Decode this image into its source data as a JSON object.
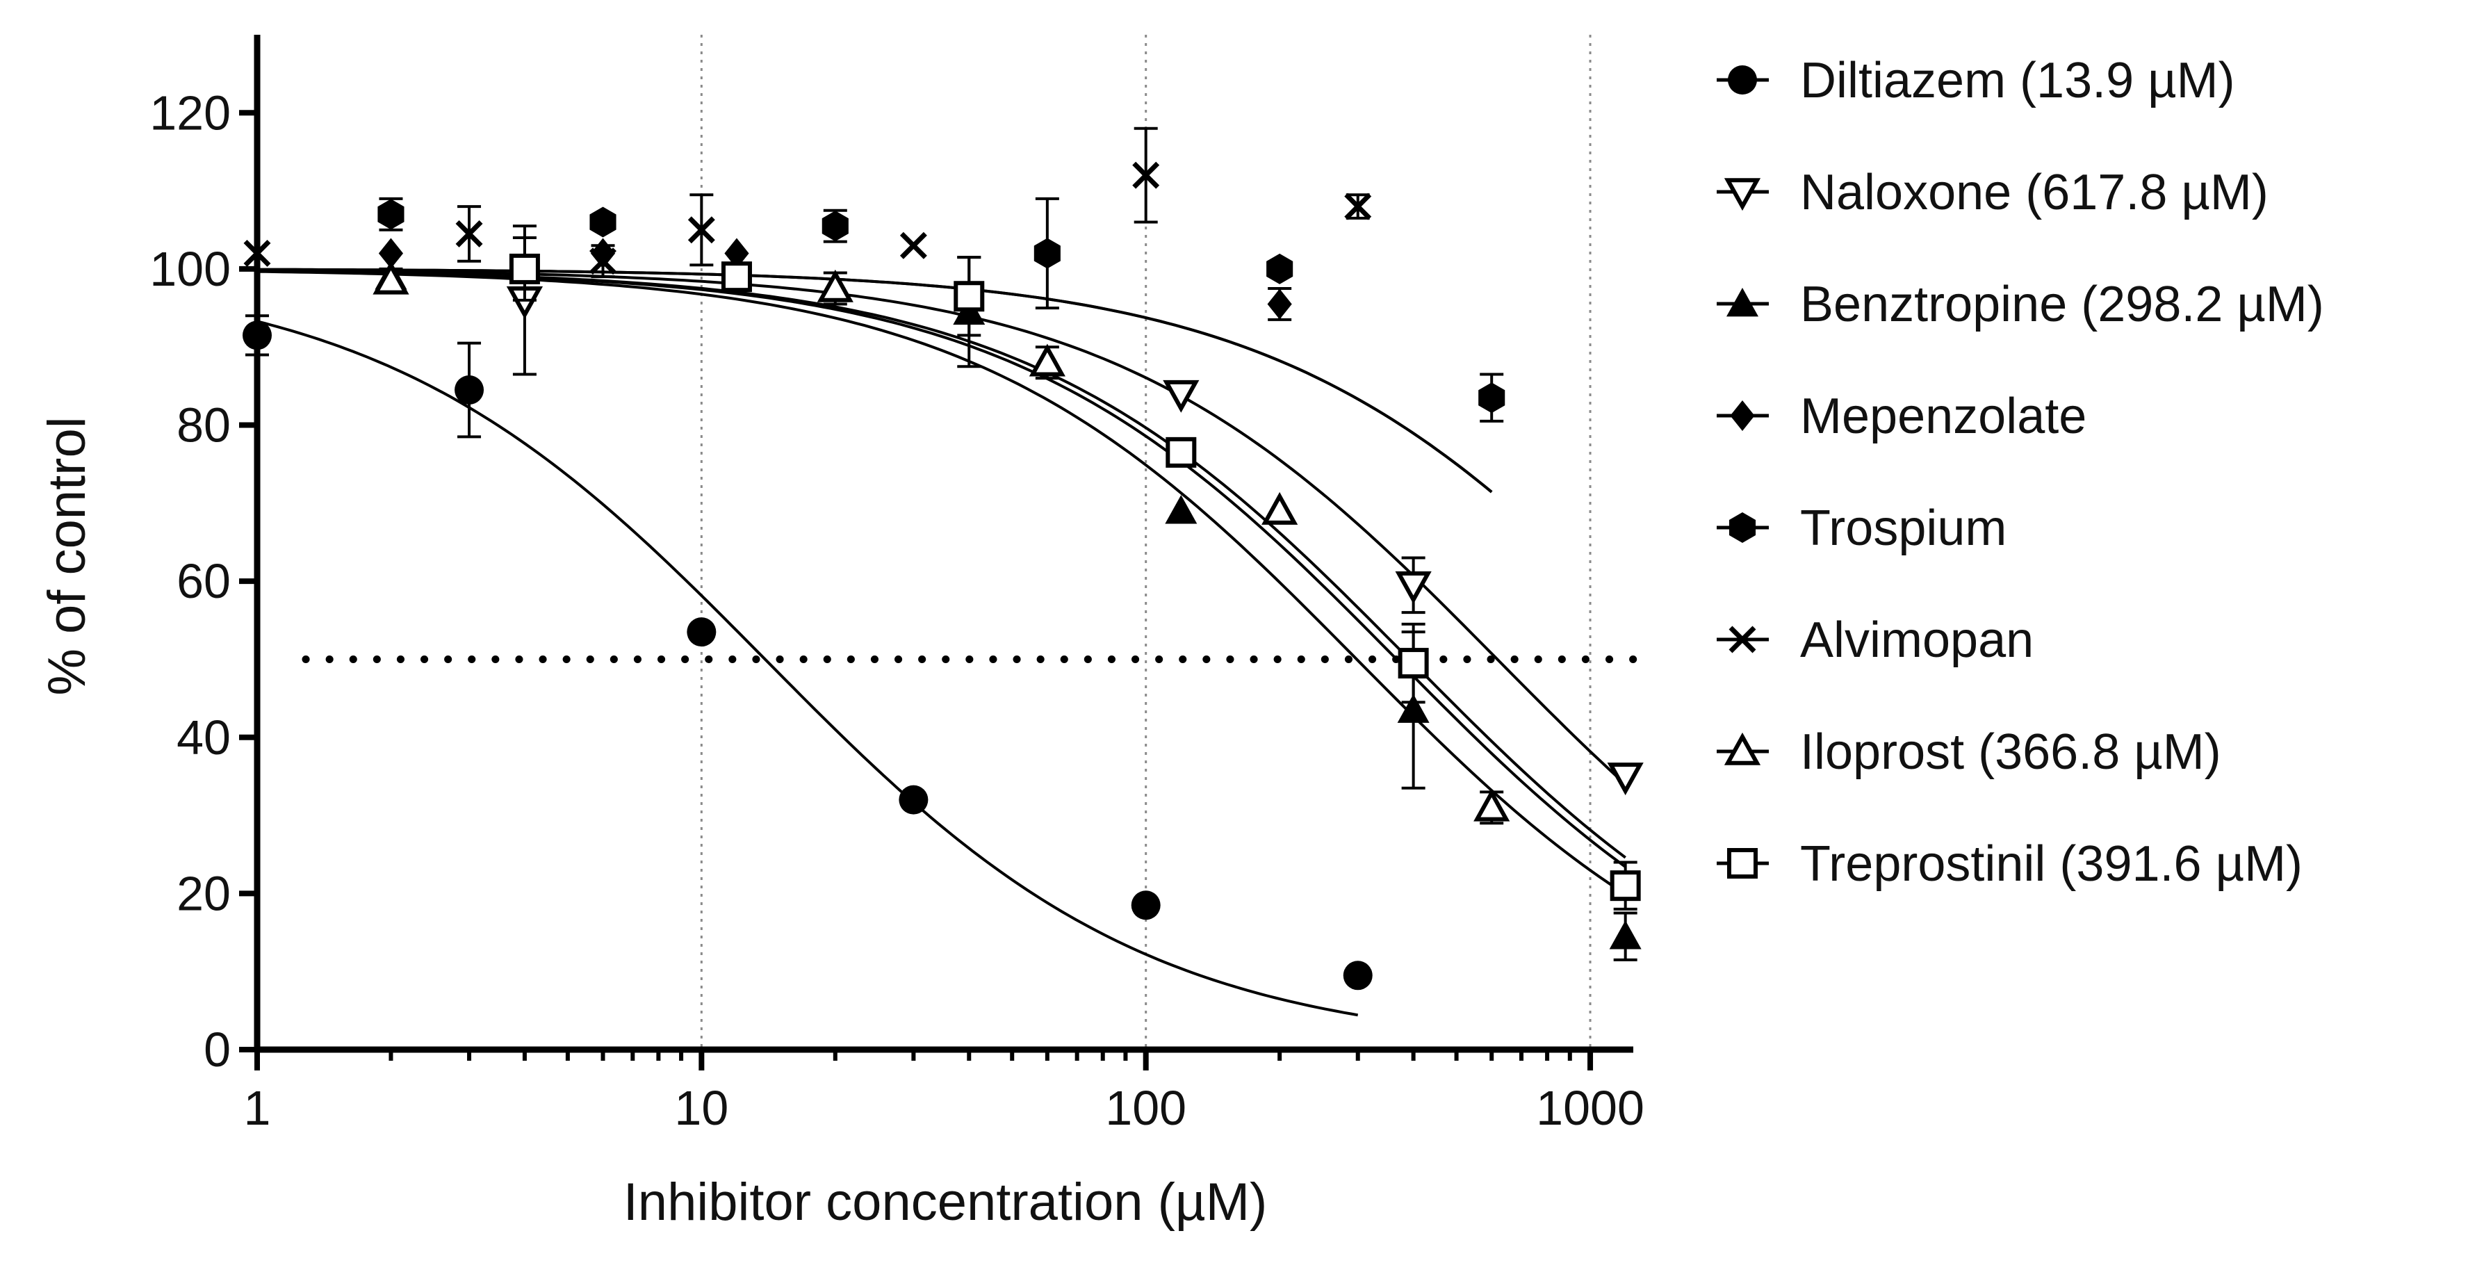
{
  "chart_data": {
    "type": "scatter",
    "title": "",
    "xlabel": "Inhibitor concentration (µM)",
    "ylabel": "% of control",
    "xscale": "log",
    "xlim": [
      1,
      1250
    ],
    "ylim": [
      0,
      130
    ],
    "x_ticks": [
      1,
      10,
      100,
      1000
    ],
    "x_tick_labels": [
      "1",
      "10",
      "100",
      "1000"
    ],
    "y_ticks": [
      0,
      20,
      40,
      60,
      80,
      100,
      120
    ],
    "y_tick_labels": [
      "0",
      "20",
      "40",
      "60",
      "80",
      "100",
      "120"
    ],
    "vertical_gridlines": [
      10,
      100,
      1000
    ],
    "reference_line": {
      "y": 50,
      "style": "dotted"
    },
    "legend_position": "right",
    "series": [
      {
        "name": "Diltiazem (13.9 µM)",
        "marker": "circle",
        "ic50": 13.9,
        "fit_range": [
          1,
          300
        ],
        "points": [
          {
            "x": 1,
            "y": 91.5,
            "err": 2.5
          },
          {
            "x": 3,
            "y": 84.5,
            "err": 6
          },
          {
            "x": 10,
            "y": 53.5,
            "err": 0
          },
          {
            "x": 30,
            "y": 32,
            "err": 0
          },
          {
            "x": 100,
            "y": 18.5,
            "err": 0
          },
          {
            "x": 300,
            "y": 9.5,
            "err": 0
          }
        ]
      },
      {
        "name": "Naloxone (617.8 µM)",
        "marker": "triangle-down-open",
        "ic50": 617.8,
        "fit_range": [
          1,
          1200
        ],
        "points": [
          {
            "x": 4,
            "y": 96,
            "err": 9.5
          },
          {
            "x": 120,
            "y": 84,
            "err": 0
          },
          {
            "x": 400,
            "y": 59.5,
            "err": 3.5
          },
          {
            "x": 1200,
            "y": 35,
            "err": 0
          }
        ]
      },
      {
        "name": "Benztropine (298.2 µM)",
        "marker": "triangle-up",
        "ic50": 298.2,
        "fit_range": [
          1,
          1200
        ],
        "points": [
          {
            "x": 2,
            "y": 99,
            "err": 1
          },
          {
            "x": 40,
            "y": 94.5,
            "err": 7
          },
          {
            "x": 120,
            "y": 69,
            "err": 0
          },
          {
            "x": 400,
            "y": 43.5,
            "err": 10
          },
          {
            "x": 1200,
            "y": 14.5,
            "err": 3
          }
        ]
      },
      {
        "name": "Mepenzolate",
        "marker": "diamond",
        "fit_range": [
          1,
          600
        ],
        "points": [
          {
            "x": 2,
            "y": 102,
            "err": 0
          },
          {
            "x": 6,
            "y": 102,
            "err": 0
          },
          {
            "x": 12,
            "y": 102,
            "err": 0
          },
          {
            "x": 200,
            "y": 95.5,
            "err": 2
          }
        ]
      },
      {
        "name": "Trospium",
        "marker": "hexagon",
        "fit_range": [
          1,
          600
        ],
        "points": [
          {
            "x": 2,
            "y": 107,
            "err": 2
          },
          {
            "x": 6,
            "y": 106,
            "err": 0
          },
          {
            "x": 20,
            "y": 105.5,
            "err": 2
          },
          {
            "x": 60,
            "y": 102,
            "err": 7
          },
          {
            "x": 200,
            "y": 100,
            "err": 0
          },
          {
            "x": 600,
            "y": 83.5,
            "err": 3
          }
        ]
      },
      {
        "name": "Alvimopan",
        "marker": "x",
        "points": [
          {
            "x": 1,
            "y": 102,
            "err": 0
          },
          {
            "x": 3,
            "y": 104.5,
            "err": 3.5
          },
          {
            "x": 6,
            "y": 101,
            "err": 2
          },
          {
            "x": 10,
            "y": 105,
            "err": 4.5
          },
          {
            "x": 30,
            "y": 103,
            "err": 0
          },
          {
            "x": 100,
            "y": 112,
            "err": 6
          },
          {
            "x": 300,
            "y": 108,
            "err": 1.5
          }
        ]
      },
      {
        "name": "Iloprost (366.8 µM)",
        "marker": "triangle-up-open",
        "ic50": 366.8,
        "fit_range": [
          2,
          1200
        ],
        "points": [
          {
            "x": 2,
            "y": 98.5,
            "err": 0
          },
          {
            "x": 20,
            "y": 97.5,
            "err": 2
          },
          {
            "x": 60,
            "y": 88,
            "err": 2
          },
          {
            "x": 200,
            "y": 69,
            "err": 0
          },
          {
            "x": 600,
            "y": 31,
            "err": 2
          }
        ]
      },
      {
        "name": "Treprostinil (391.6 µM)",
        "marker": "square-open",
        "ic50": 391.6,
        "fit_range": [
          1,
          1200
        ],
        "points": [
          {
            "x": 4,
            "y": 100,
            "err": 4
          },
          {
            "x": 12,
            "y": 99,
            "err": 1
          },
          {
            "x": 40,
            "y": 96.5,
            "err": 5
          },
          {
            "x": 120,
            "y": 76.5,
            "err": 0
          },
          {
            "x": 400,
            "y": 49.5,
            "err": 5
          },
          {
            "x": 1200,
            "y": 21,
            "err": 3
          }
        ]
      }
    ]
  }
}
